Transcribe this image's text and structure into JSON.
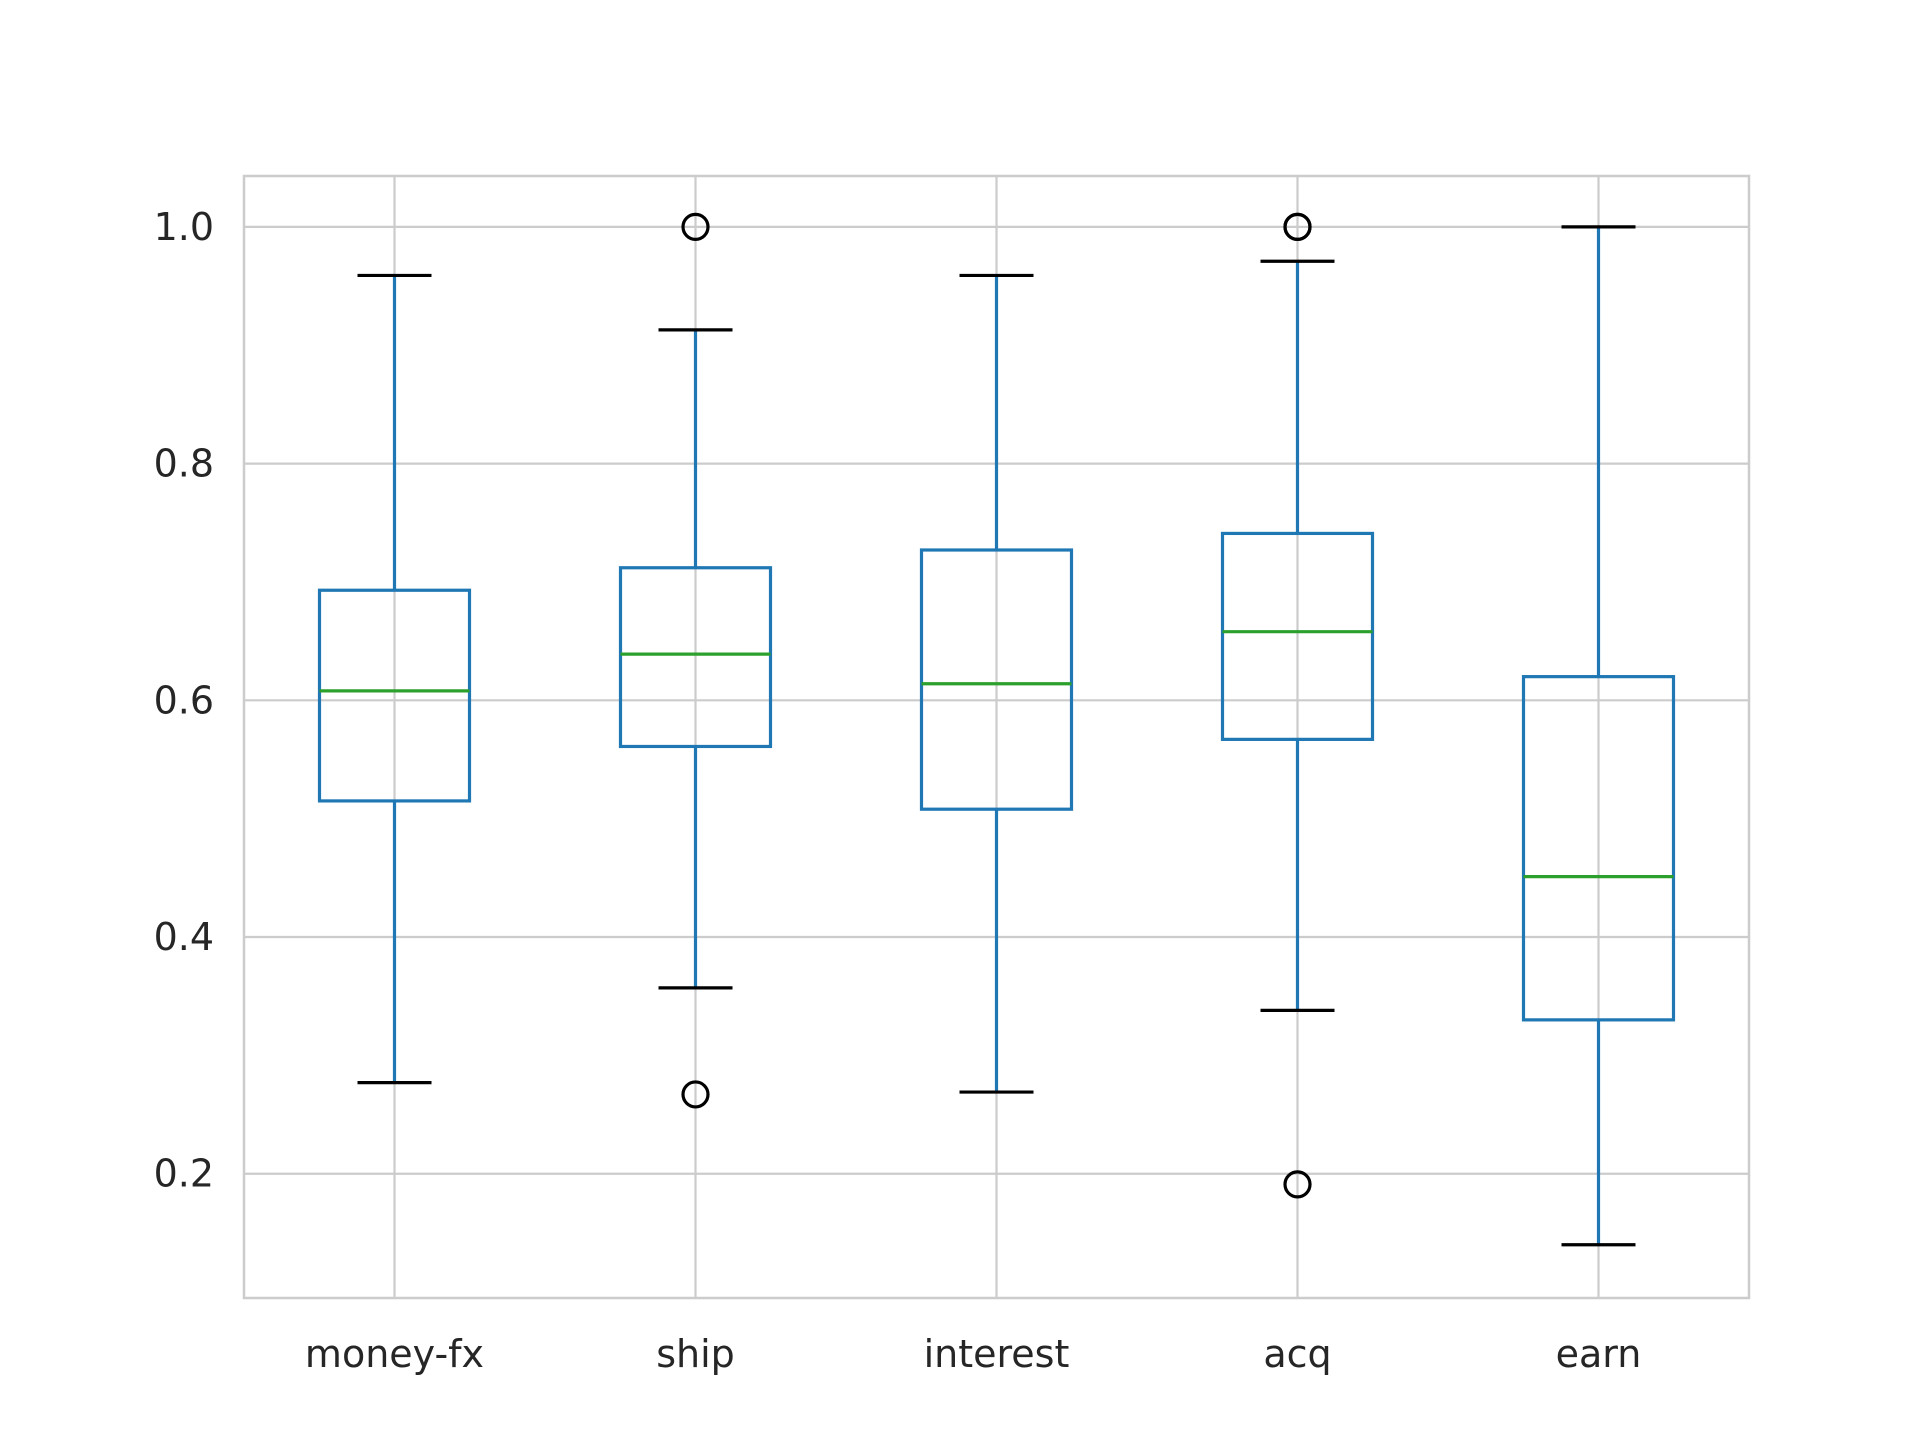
{
  "chart_data": {
    "type": "box",
    "title": "",
    "xlabel": "",
    "ylabel": "",
    "categories": [
      "money-fx",
      "ship",
      "interest",
      "acq",
      "earn"
    ],
    "boxes": [
      {
        "category": "money-fx",
        "whisker_low": 0.277,
        "q1": 0.515,
        "median": 0.608,
        "q3": 0.693,
        "whisker_high": 0.959,
        "outliers": []
      },
      {
        "category": "ship",
        "whisker_low": 0.357,
        "q1": 0.561,
        "median": 0.639,
        "q3": 0.712,
        "whisker_high": 0.913,
        "outliers": [
          1.0,
          0.267
        ]
      },
      {
        "category": "interest",
        "whisker_low": 0.269,
        "q1": 0.508,
        "median": 0.614,
        "q3": 0.727,
        "whisker_high": 0.959,
        "outliers": []
      },
      {
        "category": "acq",
        "whisker_low": 0.338,
        "q1": 0.567,
        "median": 0.658,
        "q3": 0.741,
        "whisker_high": 0.971,
        "outliers": [
          1.0,
          1.0,
          0.191
        ]
      },
      {
        "category": "earn",
        "whisker_low": 0.14,
        "q1": 0.33,
        "median": 0.451,
        "q3": 0.62,
        "whisker_high": 1.0,
        "outliers": []
      }
    ],
    "y_ticks": [
      0.2,
      0.4,
      0.6,
      0.8,
      1.0
    ],
    "y_tick_labels": [
      "0.2",
      "0.4",
      "0.6",
      "0.8",
      "1.0"
    ],
    "ylim": [
      0.095,
      1.043
    ],
    "grid": true,
    "colors": {
      "box": "#1f77b4",
      "median": "#2ca02c",
      "whisker_cap": "#000000",
      "flier": "#000000",
      "grid": "#cccccc",
      "spine": "#cccccc",
      "text": "#262626"
    }
  }
}
